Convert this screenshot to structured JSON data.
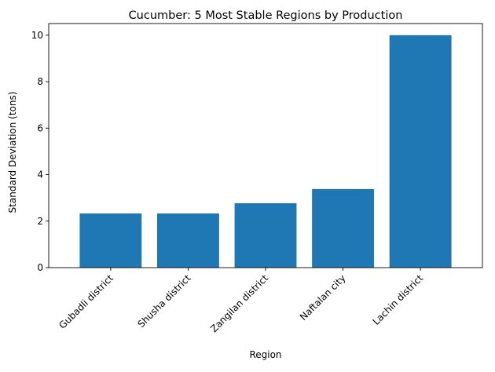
{
  "chart_data": {
    "type": "bar",
    "title": "Cucumber: 5 Most Stable Regions by Production",
    "xlabel": "Region",
    "ylabel": "Standard Deviation (tons)",
    "categories": [
      "Gubadli district",
      "Shusha district",
      "Zangilan district",
      "Naftalan city",
      "Lachin district"
    ],
    "values": [
      2.33,
      2.33,
      2.77,
      3.38,
      10.0
    ],
    "ylim": [
      0,
      10.5
    ],
    "yticks": [
      0,
      2,
      4,
      6,
      8,
      10
    ],
    "grid": false,
    "legend": "none",
    "bar_color": "#1f77b4"
  }
}
